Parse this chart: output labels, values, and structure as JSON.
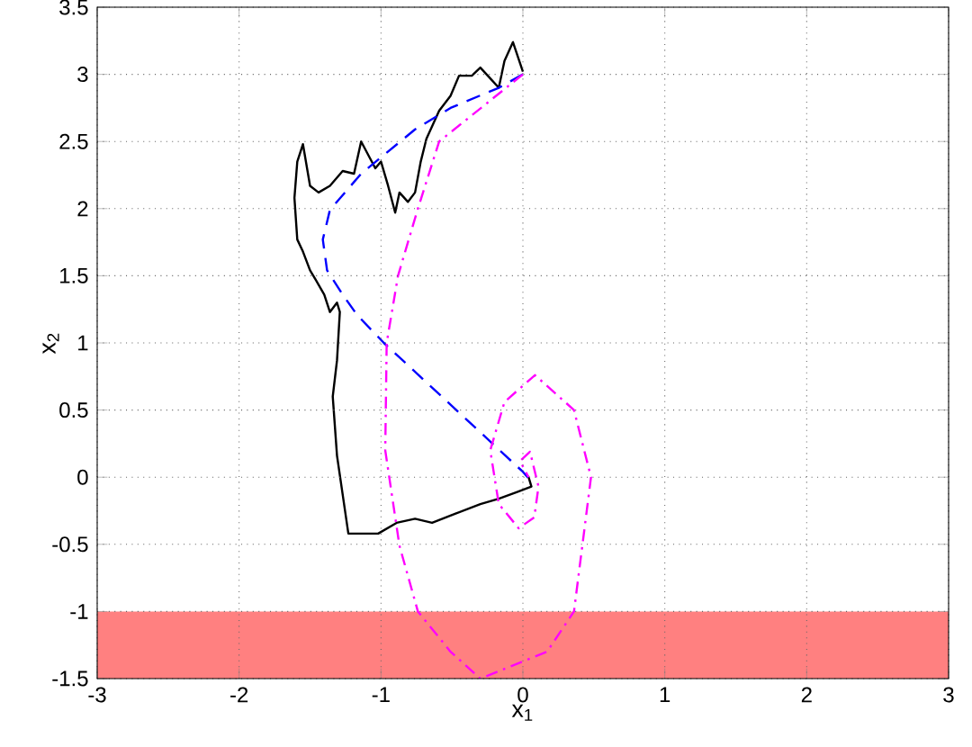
{
  "chart_data": {
    "type": "line",
    "xlabel": "x$_{1}$",
    "ylabel": "x$_{2}$",
    "xlim": [
      -3,
      3
    ],
    "ylim": [
      -1.5,
      3.5
    ],
    "xticks": [
      -3,
      -2,
      -1,
      0,
      1,
      2,
      3
    ],
    "yticks": [
      -1.5,
      -1,
      -0.5,
      0,
      0.5,
      1,
      1.5,
      2,
      2.5,
      3,
      3.5
    ],
    "grid": true,
    "marker": "none",
    "bands": [
      {
        "axis": "y",
        "from": -1.5,
        "to": -1,
        "color": "#ff8080"
      }
    ],
    "series": [
      {
        "color": "#000000",
        "line_style": "solid",
        "x": [
          0.0,
          -0.07,
          -0.13,
          -0.17,
          -0.23,
          -0.3,
          -0.36,
          -0.45,
          -0.51,
          -0.59,
          -0.68,
          -0.72,
          -0.76,
          -0.81,
          -0.87,
          -0.9,
          -0.95,
          -1.0,
          -1.04,
          -1.14,
          -1.19,
          -1.27,
          -1.36,
          -1.44,
          -1.5,
          -1.55,
          -1.59,
          -1.61,
          -1.59,
          -1.55,
          -1.5,
          -1.46,
          -1.4,
          -1.36,
          -1.31,
          -1.29,
          -1.31,
          -1.34,
          -1.31,
          -1.23,
          -1.02,
          -0.89,
          -0.76,
          -0.64,
          -0.47,
          -0.3,
          -0.17,
          -0.04,
          0.06,
          0.04,
          0.02
        ],
        "values": [
          3.02,
          3.24,
          3.1,
          2.9,
          2.97,
          3.05,
          2.99,
          2.99,
          2.84,
          2.73,
          2.52,
          2.35,
          2.12,
          2.05,
          2.12,
          1.97,
          2.17,
          2.35,
          2.3,
          2.5,
          2.26,
          2.28,
          2.17,
          2.12,
          2.17,
          2.48,
          2.35,
          2.08,
          1.77,
          1.68,
          1.54,
          1.47,
          1.36,
          1.23,
          1.3,
          1.23,
          0.87,
          0.6,
          0.16,
          -0.42,
          -0.42,
          -0.34,
          -0.31,
          -0.34,
          -0.27,
          -0.2,
          -0.16,
          -0.11,
          -0.07,
          0.0,
          0.02
        ]
      },
      {
        "color": "#0000ff",
        "line_style": "dashed",
        "x": [
          0.0,
          -0.17,
          -0.51,
          -0.76,
          -1.14,
          -1.36,
          -1.41,
          -1.38,
          -1.27,
          -1.17,
          -0.98,
          0.0,
          0.05
        ],
        "values": [
          3.0,
          2.9,
          2.75,
          2.59,
          2.26,
          1.99,
          1.77,
          1.54,
          1.36,
          1.21,
          1.0,
          0.04,
          -0.02
        ]
      },
      {
        "color": "#ff00ff",
        "line_style": "dashdot",
        "x": [
          0.0,
          -0.59,
          -0.74,
          -0.88,
          -0.96,
          -0.97,
          -0.87,
          -0.74,
          -0.51,
          -0.3,
          0.17,
          0.36,
          0.48,
          0.36,
          0.085,
          -0.13,
          -0.23,
          -0.17,
          -0.03,
          0.08,
          0.11,
          0.05,
          -0.02,
          0.04
        ],
        "values": [
          3.0,
          2.5,
          2.0,
          1.5,
          1.0,
          0.2,
          -0.51,
          -1.0,
          -1.3,
          -1.5,
          -1.3,
          -1.0,
          0.0,
          0.5,
          0.76,
          0.56,
          0.2,
          -0.2,
          -0.38,
          -0.3,
          -0.07,
          0.19,
          0.12,
          0.0
        ]
      }
    ]
  }
}
